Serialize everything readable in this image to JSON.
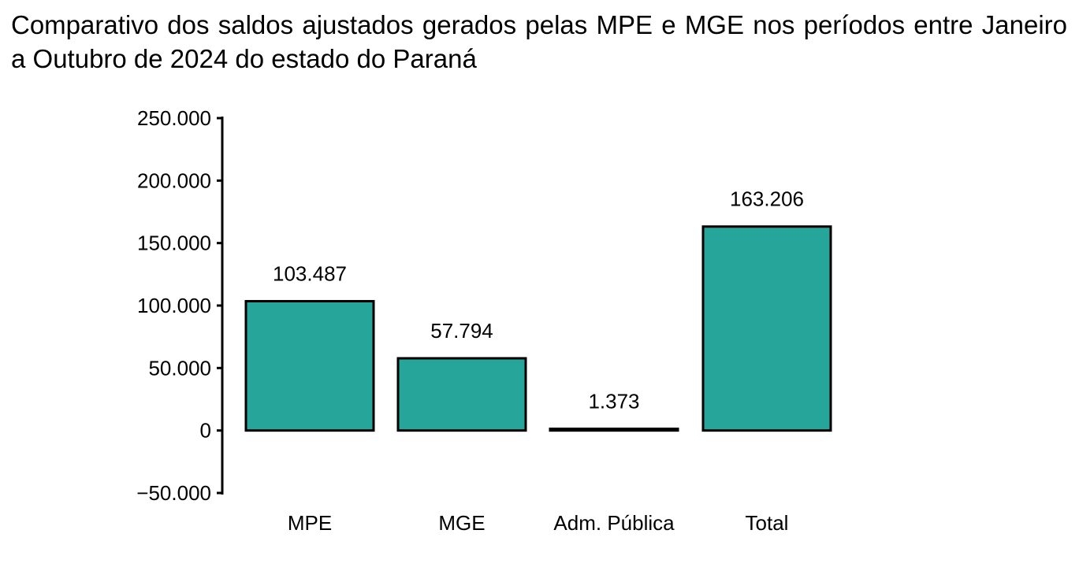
{
  "chart_data": {
    "type": "bar",
    "title": "Comparativo dos saldos ajustados gerados pelas MPE e MGE nos períodos entre Janeiro a Outubro de 2024 do estado do Paraná",
    "xlabel": "",
    "ylabel": "",
    "categories": [
      "MPE",
      "MGE",
      "Adm. Pública",
      "Total"
    ],
    "values": [
      103487,
      57794,
      1373,
      163206
    ],
    "value_labels": [
      "103.487",
      "57.794",
      "1.373",
      "163.206"
    ],
    "ylim": [
      -50000,
      250000
    ],
    "yticks": [
      -50000,
      0,
      50000,
      100000,
      150000,
      200000,
      250000
    ],
    "ytick_labels": [
      "−50.000",
      "0",
      "50.000",
      "100.000",
      "150.000",
      "200.000",
      "250.000"
    ],
    "grid": false,
    "legend": "none",
    "colors": {
      "bar_fill": "#26a69a",
      "bar_stroke": "#000000",
      "axis": "#000000"
    }
  }
}
